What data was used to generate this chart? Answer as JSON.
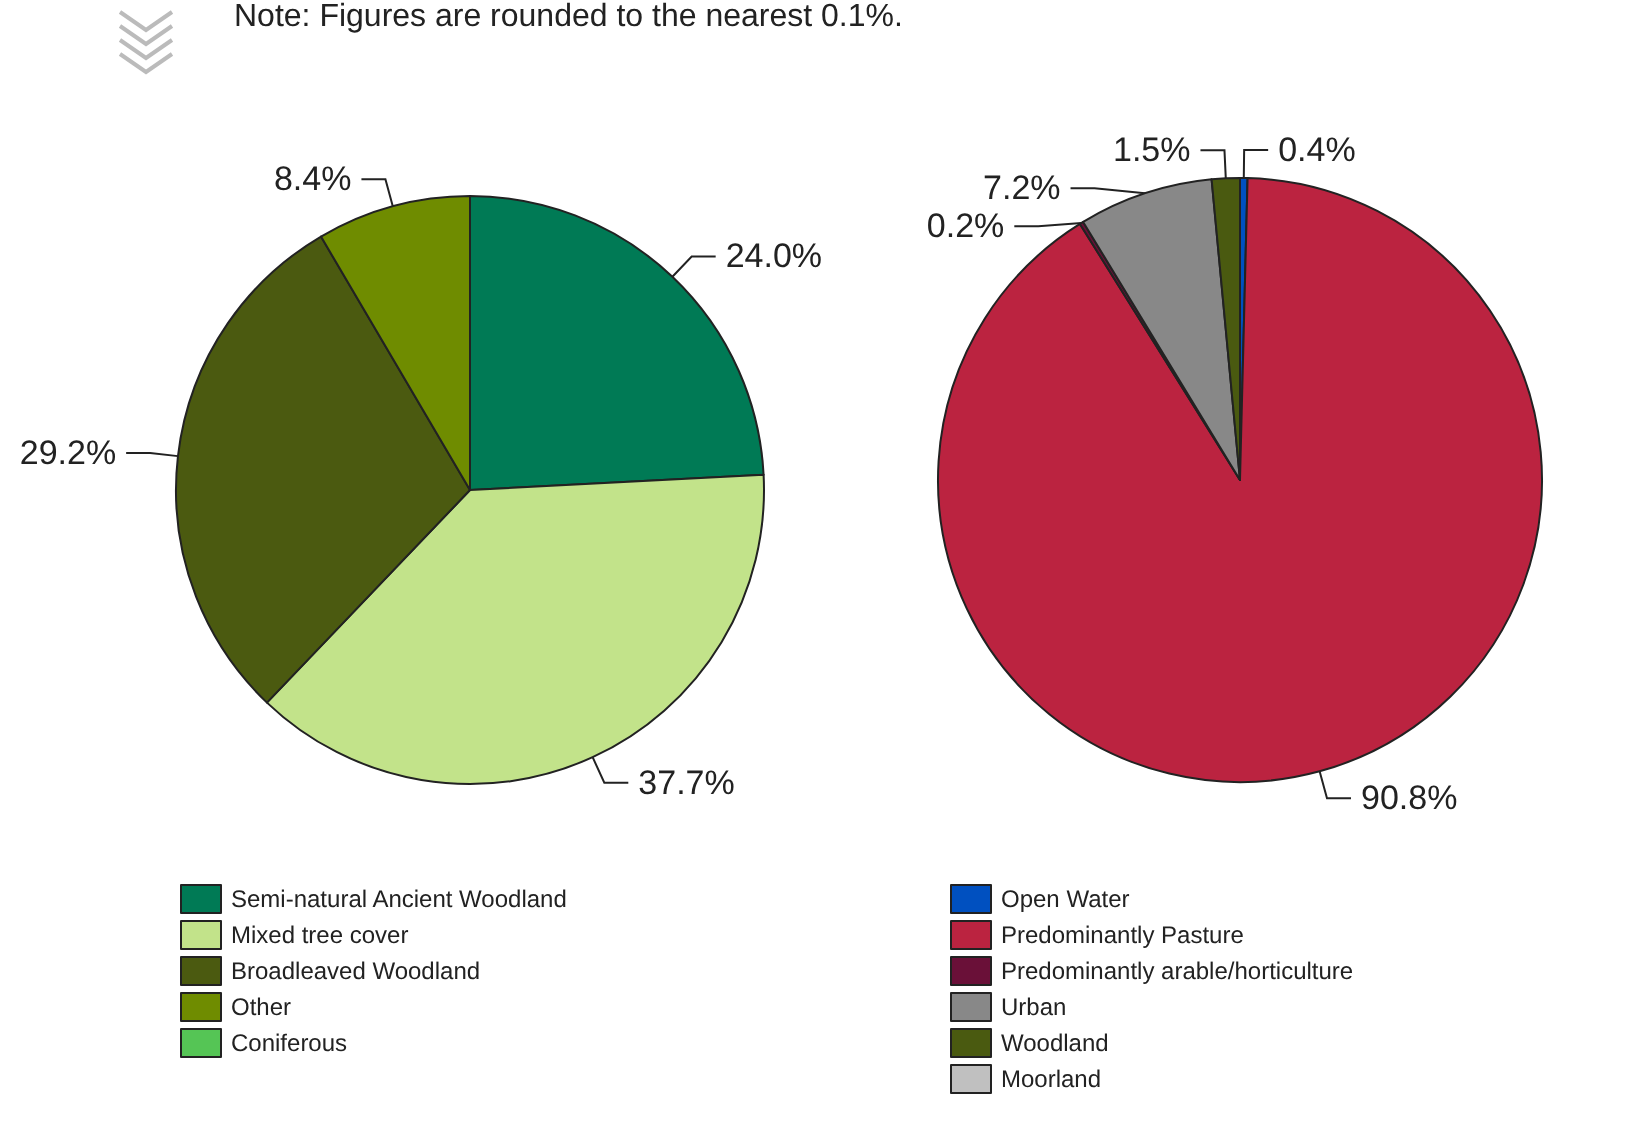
{
  "chart_data": [
    {
      "type": "pie",
      "annotations": [
        "Note: Figures are rounded to the nearest 0.1%."
      ],
      "legend": "bottom",
      "categories": [
        "Semi-natural Ancient Woodland",
        "Mixed tree cover",
        "Broadleaved Woodland",
        "Other",
        "Coniferous"
      ],
      "values": [
        24.0,
        37.7,
        29.2,
        8.4,
        0
      ],
      "value_labels": [
        "24.0%",
        "37.7%",
        "29.2%",
        "8.4%",
        null
      ],
      "colors": [
        "#007a55",
        "#c2e38a",
        "#4b5a10",
        "#6f8c00",
        "#55c555"
      ]
    },
    {
      "type": "pie",
      "legend": "bottom",
      "categories": [
        "Open Water",
        "Predominantly Pasture",
        "Predominantly arable/horticulture",
        "Urban",
        "Woodland",
        "Moorland"
      ],
      "values": [
        0.4,
        90.8,
        0.2,
        7.2,
        1.5,
        0
      ],
      "value_labels": [
        "0.4%",
        "90.8%",
        "0.2%",
        "7.2%",
        "1.5%",
        null
      ],
      "colors": [
        "#0050c0",
        "#bb2340",
        "#6a1038",
        "#888888",
        "#4a5a10",
        "#c0c0c0"
      ]
    }
  ]
}
